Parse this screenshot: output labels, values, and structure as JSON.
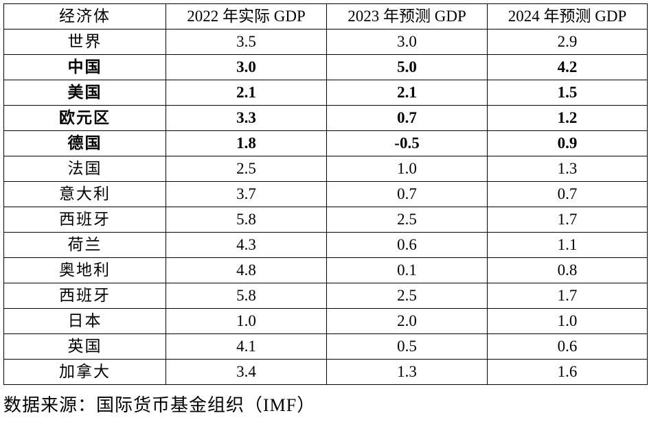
{
  "table": {
    "headers": [
      "经济体",
      "2022 年实际 GDP",
      "2023 年预测 GDP",
      "2024 年预测 GDP"
    ],
    "rows": [
      {
        "economy": "世界",
        "y2022": "3.5",
        "y2023": "3.0",
        "y2024": "2.9",
        "bold": false
      },
      {
        "economy": "中国",
        "y2022": "3.0",
        "y2023": "5.0",
        "y2024": "4.2",
        "bold": true
      },
      {
        "economy": "美国",
        "y2022": "2.1",
        "y2023": "2.1",
        "y2024": "1.5",
        "bold": true
      },
      {
        "economy": "欧元区",
        "y2022": "3.3",
        "y2023": "0.7",
        "y2024": "1.2",
        "bold": true
      },
      {
        "economy": "德国",
        "y2022": "1.8",
        "y2023": "-0.5",
        "y2024": "0.9",
        "bold": true
      },
      {
        "economy": "法国",
        "y2022": "2.5",
        "y2023": "1.0",
        "y2024": "1.3",
        "bold": false
      },
      {
        "economy": "意大利",
        "y2022": "3.7",
        "y2023": "0.7",
        "y2024": "0.7",
        "bold": false
      },
      {
        "economy": "西班牙",
        "y2022": "5.8",
        "y2023": "2.5",
        "y2024": "1.7",
        "bold": false
      },
      {
        "economy": "荷兰",
        "y2022": "4.3",
        "y2023": "0.6",
        "y2024": "1.1",
        "bold": false
      },
      {
        "economy": "奥地利",
        "y2022": "4.8",
        "y2023": "0.1",
        "y2024": "0.8",
        "bold": false
      },
      {
        "economy": "西班牙",
        "y2022": "5.8",
        "y2023": "2.5",
        "y2024": "1.7",
        "bold": false
      },
      {
        "economy": "日本",
        "y2022": "1.0",
        "y2023": "2.0",
        "y2024": "1.0",
        "bold": false
      },
      {
        "economy": "英国",
        "y2022": "4.1",
        "y2023": "0.5",
        "y2024": "0.6",
        "bold": false
      },
      {
        "economy": "加拿大",
        "y2022": "3.4",
        "y2023": "1.3",
        "y2024": "1.6",
        "bold": false
      }
    ]
  },
  "source": "数据来源：国际货币基金组织（IMF）"
}
